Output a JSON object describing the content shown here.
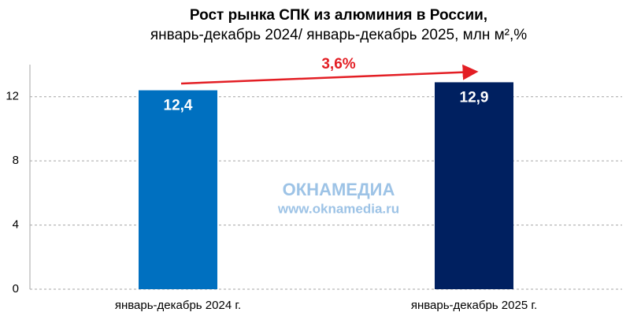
{
  "chart_data": {
    "type": "bar",
    "title": "Рост рынка СПК из алюминия в России,",
    "subtitle": "январь-декабрь 2024/ январь-декабрь 2025, млн м²,%",
    "categories": [
      "январь-декабрь 2024 г.",
      "январь-декабрь 2025 г."
    ],
    "values": [
      12.4,
      12.9
    ],
    "value_labels": [
      "12,4",
      "12,9"
    ],
    "colors": [
      "#0070c0",
      "#002060"
    ],
    "ylim": [
      0,
      14
    ],
    "yticks": [
      0,
      4,
      8,
      12
    ],
    "grid": true,
    "annotation": "3,6%",
    "watermark": {
      "brand": "ОКНАМЕДИА",
      "url": "www.oknamedia.ru"
    }
  }
}
